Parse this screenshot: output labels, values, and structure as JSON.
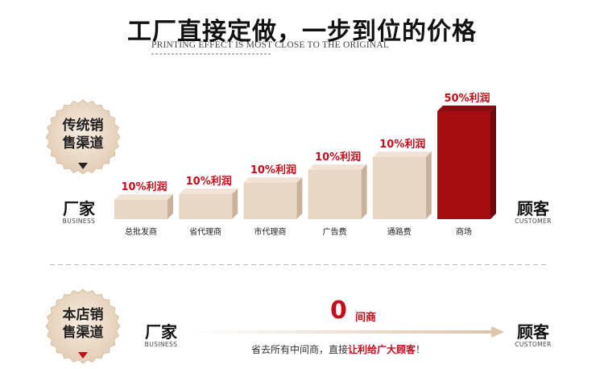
{
  "header": {
    "title": "工厂直接定做，一步到位的价格",
    "subtitle": "PRINTING EFFECT IS MOST CLOSE TO THE ORIGINAL"
  },
  "traditional": {
    "seal_line1": "传统销",
    "seal_line2": "售渠道",
    "factory_cn": "厂家",
    "factory_en": "BUSINESS",
    "customer_cn": "顾客",
    "customer_en": "CUSTOMER"
  },
  "chart_data": {
    "type": "bar",
    "categories": [
      "总批发商",
      "省代理商",
      "市代理商",
      "广告费",
      "通路费",
      "商场"
    ],
    "values": [
      10,
      10,
      10,
      10,
      10,
      50
    ],
    "data_labels": [
      "10%利润",
      "10%利润",
      "10%利润",
      "10%利润",
      "10%利润",
      "50%利润"
    ],
    "highlight_color": "#a50d12",
    "base_color": "#e8d7c6"
  },
  "store": {
    "seal_line1": "本店销",
    "seal_line2": "售渠道",
    "factory_cn": "厂家",
    "factory_en": "BUSINESS",
    "customer_cn": "顾客",
    "customer_en": "CUSTOMER",
    "zero": "0",
    "zero_label": "间商",
    "slogan_prefix": "省去所有中间商，直接",
    "slogan_highlight": "让利给广大顾客",
    "slogan_suffix": "！"
  }
}
